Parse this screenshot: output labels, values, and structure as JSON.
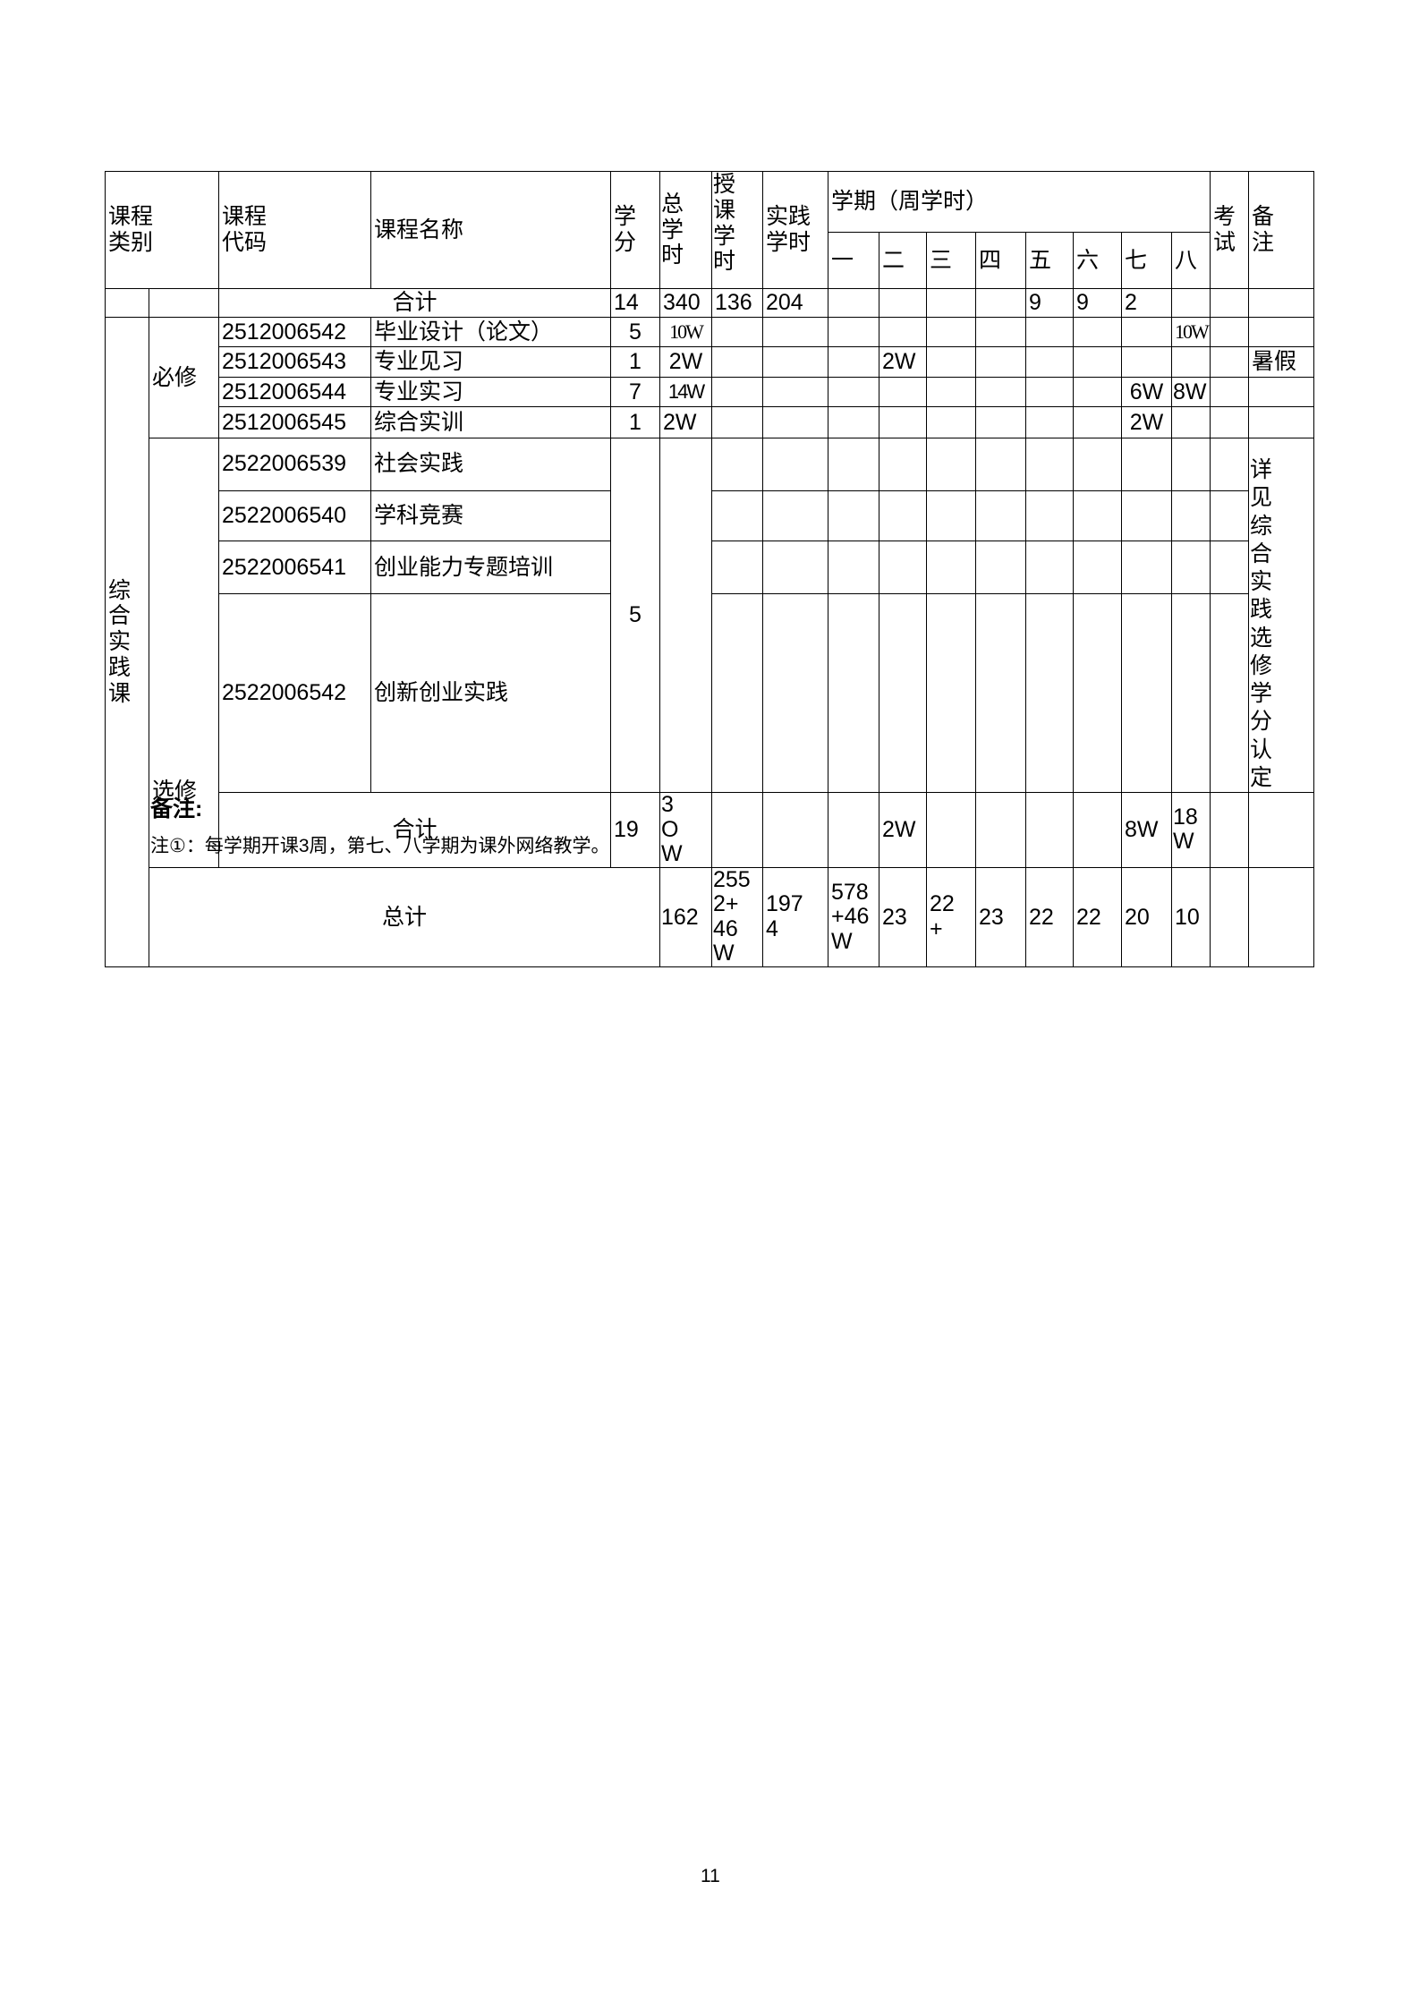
{
  "header": {
    "category": "课程类别",
    "code": "课程代码",
    "name": "课程名称",
    "credits": "学分",
    "total_hours": "总学时",
    "lecture_hours": "授课学时",
    "practice_hours": "实践学时",
    "semester_group": "学期（周学时）",
    "semesters": [
      "一",
      "二",
      "三",
      "四",
      "五",
      "六",
      "七",
      "八"
    ],
    "exam": "考试",
    "remarks": "备注"
  },
  "top_subtotal": {
    "label": "合计",
    "credits": "14",
    "total": "340",
    "lecture": "136",
    "practice": "204",
    "sem5": "9",
    "sem6": "9",
    "sem7": "2"
  },
  "category": "综合实践课",
  "required_label": "必修",
  "elective_label": "选修",
  "required_courses": [
    {
      "code": "2512006542",
      "name": "毕业设计（论文）",
      "credits": "5",
      "total": "10W",
      "sem8": "10W"
    },
    {
      "code": "2512006543",
      "name": "专业见习",
      "credits": "1",
      "total": "2W",
      "sem2": "2W",
      "remark": "暑假"
    },
    {
      "code": "2512006544",
      "name": "专业实习",
      "credits": "7",
      "total": "14W",
      "sem7": "6W",
      "sem8": "8W"
    },
    {
      "code": "2512006545",
      "name": "综合实训",
      "credits": "1",
      "total": "2W",
      "sem7": "2W"
    }
  ],
  "elective_courses": [
    {
      "code": "2522006539",
      "name": "社会实践"
    },
    {
      "code": "2522006540",
      "name": "学科竞赛"
    },
    {
      "code": "2522006541",
      "name": "创业能力专题培训"
    },
    {
      "code": "2522006542",
      "name": "创新创业实践"
    }
  ],
  "elective_credits": "5",
  "elective_remark": "详见综合实践选修学分认定",
  "subtotal": {
    "label": "合计",
    "credits": "19",
    "total": "3OW",
    "sem2": "2W",
    "sem7": "8W",
    "sem8": "18W"
  },
  "grand_total": {
    "label": "总计",
    "credits": "162",
    "total": "2552+46W",
    "lecture": "1974",
    "practice": "578+46W",
    "sems": [
      "23",
      "22+",
      "23",
      "22",
      "22",
      "20",
      "10",
      ""
    ]
  },
  "notes": {
    "title": "备注:",
    "line1": "注①：每学期开课3周，第七、八学期为课外网络教学。"
  },
  "page_number": "11"
}
